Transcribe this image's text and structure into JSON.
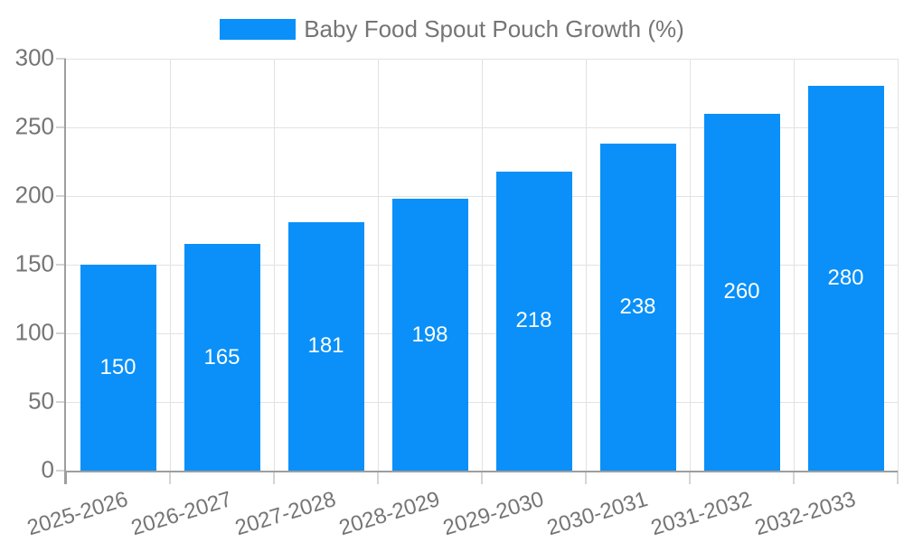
{
  "chart_data": {
    "type": "bar",
    "title": "",
    "legend_entries": [
      "Baby Food Spout Pouch Growth (%)"
    ],
    "legend_position": "top-center",
    "categories": [
      "2025-2026",
      "2026-2027",
      "2027-2028",
      "2028-2029",
      "2029-2030",
      "2030-2031",
      "2031-2032",
      "2032-2033"
    ],
    "values": [
      150,
      165,
      181,
      198,
      218,
      238,
      260,
      280
    ],
    "xlabel": "",
    "ylabel": "",
    "ylim": [
      0,
      300
    ],
    "yticks": [
      0,
      50,
      100,
      150,
      200,
      250,
      300
    ],
    "grid": true,
    "bar_value_labels_visible": true,
    "x_tick_rotation_deg": -17,
    "colors": {
      "bar": "#0a90f8",
      "bar_value_label": "#ffffff",
      "axis_text": "#757575",
      "axis_line": "#9e9e9e",
      "gridline": "#e2e2e2",
      "tick": "#d4d4d4"
    }
  }
}
